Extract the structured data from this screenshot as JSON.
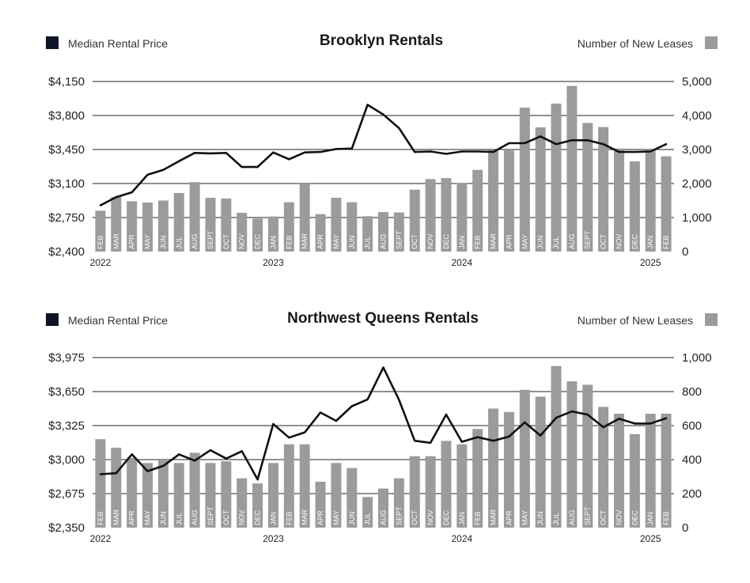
{
  "colors": {
    "line": "#111111",
    "bar": "#9b9b9b",
    "grid": "#222222",
    "legend_line": "#0f1526",
    "legend_bar": "#9b9b9b"
  },
  "legend": {
    "line_label": "Median Rental Price",
    "bar_label": "Number of New Leases"
  },
  "chart_data": [
    {
      "type": "bar",
      "title": "Brooklyn Rentals",
      "categories": [
        "FEB",
        "MAR",
        "APR",
        "MAY",
        "JUN",
        "JUL",
        "AUG",
        "SEPT",
        "OCT",
        "NOV",
        "DEC",
        "JAN",
        "FEB",
        "MAR",
        "APR",
        "MAY",
        "JUN",
        "JUL",
        "AUG",
        "SEPT",
        "OCT",
        "NOV",
        "DEC",
        "JAN",
        "FEB",
        "MAR",
        "APR",
        "MAY",
        "JUN",
        "JUL",
        "AUG",
        "SEPT",
        "OCT",
        "NOV",
        "DEC",
        "JAN",
        "FEB"
      ],
      "years": [
        {
          "label": "2022",
          "index": 0
        },
        {
          "label": "2023",
          "index": 11
        },
        {
          "label": "2024",
          "index": 23
        },
        {
          "label": "2025",
          "index": 35
        }
      ],
      "left_axis": {
        "ticks": [
          2400,
          2750,
          3100,
          3450,
          3800,
          4150
        ],
        "tick_labels": [
          "$2,400",
          "$2,750",
          "$3,100",
          "$3,450",
          "$3,800",
          "$4,150"
        ],
        "ylim": [
          2400,
          4150
        ]
      },
      "right_axis": {
        "ticks": [
          0,
          1000,
          2000,
          3000,
          4000,
          5000
        ],
        "tick_labels": [
          "0",
          "1,000",
          "2,000",
          "3,000",
          "4,000",
          "5,000"
        ],
        "ylim": [
          0,
          5000
        ]
      },
      "series": [
        {
          "name": "Number of New Leases",
          "kind": "bar",
          "axis": "right",
          "values": [
            1200,
            1600,
            1480,
            1440,
            1500,
            1720,
            2040,
            1580,
            1560,
            1140,
            970,
            1030,
            1450,
            2000,
            1100,
            1580,
            1450,
            1040,
            1160,
            1150,
            1820,
            2130,
            2160,
            2020,
            2400,
            2980,
            3000,
            4230,
            3650,
            4350,
            4870,
            3780,
            3660,
            3030,
            2650,
            3000,
            2800
          ]
        },
        {
          "name": "Median Rental Price",
          "kind": "line",
          "axis": "left",
          "values": [
            2875,
            2960,
            3010,
            3190,
            3240,
            3330,
            3415,
            3410,
            3415,
            3270,
            3270,
            3420,
            3350,
            3420,
            3425,
            3455,
            3460,
            3910,
            3810,
            3670,
            3425,
            3430,
            3405,
            3430,
            3430,
            3425,
            3515,
            3515,
            3585,
            3505,
            3545,
            3545,
            3505,
            3425,
            3425,
            3430,
            3505
          ]
        }
      ]
    },
    {
      "type": "bar",
      "title": "Northwest Queens Rentals",
      "categories": [
        "FEB",
        "MAR",
        "APR",
        "MAY",
        "JUN",
        "JUL",
        "AUG",
        "SEPT",
        "OCT",
        "NOV",
        "DEC",
        "JAN",
        "FEB",
        "MAR",
        "APR",
        "MAY",
        "JUN",
        "JUL",
        "AUG",
        "SEPT",
        "OCT",
        "NOV",
        "DEC",
        "JAN",
        "FEB",
        "MAR",
        "APR",
        "MAY",
        "JUN",
        "JUL",
        "AUG",
        "SEPT",
        "OCT",
        "NOV",
        "DEC",
        "JAN",
        "FEB"
      ],
      "years": [
        {
          "label": "2022",
          "index": 0
        },
        {
          "label": "2023",
          "index": 11
        },
        {
          "label": "2024",
          "index": 23
        },
        {
          "label": "2025",
          "index": 35
        }
      ],
      "left_axis": {
        "ticks": [
          2350,
          2675,
          3000,
          3325,
          3650,
          3975
        ],
        "tick_labels": [
          "$2,350",
          "$2,675",
          "$3,000",
          "$3,325",
          "$3,650",
          "$3,975"
        ],
        "ylim": [
          2350,
          3975
        ]
      },
      "right_axis": {
        "ticks": [
          0,
          200,
          400,
          600,
          800,
          1000
        ],
        "tick_labels": [
          "0",
          "200",
          "400",
          "600",
          "800",
          "1,000"
        ],
        "ylim": [
          0,
          1000
        ]
      },
      "series": [
        {
          "name": "Number of New Leases",
          "kind": "bar",
          "axis": "right",
          "values": [
            520,
            470,
            410,
            380,
            400,
            380,
            440,
            380,
            390,
            290,
            260,
            380,
            490,
            490,
            270,
            380,
            350,
            180,
            230,
            290,
            420,
            420,
            510,
            490,
            580,
            700,
            680,
            810,
            770,
            950,
            860,
            840,
            710,
            670,
            550,
            670,
            670
          ]
        },
        {
          "name": "Median Rental Price",
          "kind": "line",
          "axis": "left",
          "values": [
            2860,
            2870,
            3050,
            2890,
            2940,
            3050,
            2990,
            3090,
            3010,
            3080,
            2810,
            3340,
            3210,
            3260,
            3450,
            3370,
            3510,
            3575,
            3880,
            3570,
            3180,
            3160,
            3430,
            3170,
            3215,
            3180,
            3220,
            3355,
            3230,
            3400,
            3460,
            3430,
            3310,
            3390,
            3345,
            3345,
            3395
          ]
        }
      ]
    }
  ]
}
